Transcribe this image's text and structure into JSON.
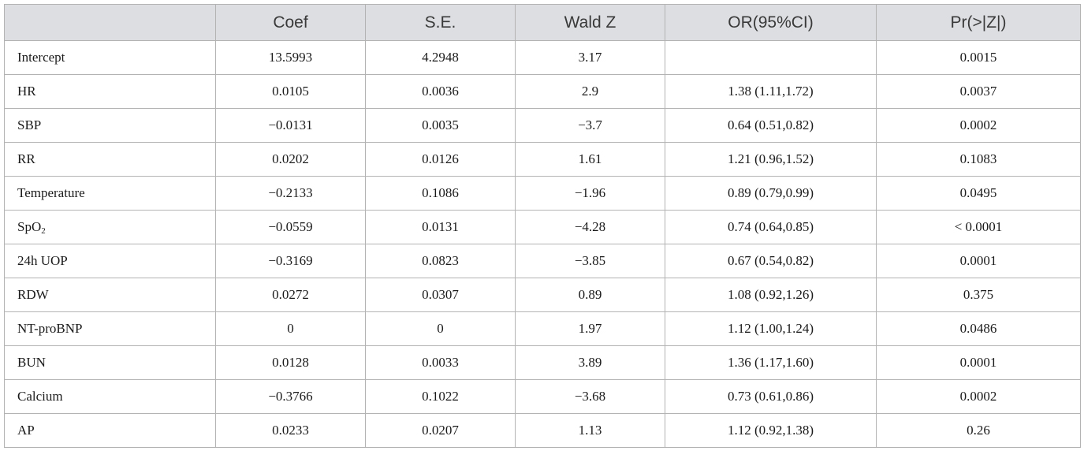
{
  "table": {
    "headers": [
      "",
      "Coef",
      "S.E.",
      "Wald Z",
      "OR(95%CI)",
      "Pr(>|Z|)"
    ],
    "rows": [
      {
        "label": "Intercept",
        "label_sub": "",
        "coef": "13.5993",
        "se": "4.2948",
        "waldz": "3.17",
        "or": "",
        "p": "0.0015"
      },
      {
        "label": "HR",
        "label_sub": "",
        "coef": "0.0105",
        "se": "0.0036",
        "waldz": "2.9",
        "or": "1.38 (1.11,1.72)",
        "p": "0.0037"
      },
      {
        "label": "SBP",
        "label_sub": "",
        "coef": "−0.0131",
        "se": "0.0035",
        "waldz": "−3.7",
        "or": "0.64 (0.51,0.82)",
        "p": "0.0002"
      },
      {
        "label": "RR",
        "label_sub": "",
        "coef": "0.0202",
        "se": "0.0126",
        "waldz": "1.61",
        "or": "1.21 (0.96,1.52)",
        "p": "0.1083"
      },
      {
        "label": "Temperature",
        "label_sub": "",
        "coef": "−0.2133",
        "se": "0.1086",
        "waldz": "−1.96",
        "or": "0.89 (0.79,0.99)",
        "p": "0.0495"
      },
      {
        "label": "SpO",
        "label_sub": "2",
        "coef": "−0.0559",
        "se": "0.0131",
        "waldz": "−4.28",
        "or": "0.74 (0.64,0.85)",
        "p": "< 0.0001"
      },
      {
        "label": "24h UOP",
        "label_sub": "",
        "coef": "−0.3169",
        "se": "0.0823",
        "waldz": "−3.85",
        "or": "0.67 (0.54,0.82)",
        "p": "0.0001"
      },
      {
        "label": "RDW",
        "label_sub": "",
        "coef": "0.0272",
        "se": "0.0307",
        "waldz": "0.89",
        "or": "1.08 (0.92,1.26)",
        "p": "0.375"
      },
      {
        "label": "NT-proBNP",
        "label_sub": "",
        "coef": "0",
        "se": "0",
        "waldz": "1.97",
        "or": "1.12 (1.00,1.24)",
        "p": "0.0486"
      },
      {
        "label": "BUN",
        "label_sub": "",
        "coef": "0.0128",
        "se": "0.0033",
        "waldz": "3.89",
        "or": "1.36 (1.17,1.60)",
        "p": "0.0001"
      },
      {
        "label": "Calcium",
        "label_sub": "",
        "coef": "−0.3766",
        "se": "0.1022",
        "waldz": "−3.68",
        "or": "0.73 (0.61,0.86)",
        "p": "0.0002"
      },
      {
        "label": "AP",
        "label_sub": "",
        "coef": "0.0233",
        "se": "0.0207",
        "waldz": "1.13",
        "or": "1.12 (0.92,1.38)",
        "p": "0.26"
      }
    ]
  },
  "colors": {
    "header_bg": "#dcdee2",
    "border": "#b3b3b3"
  }
}
